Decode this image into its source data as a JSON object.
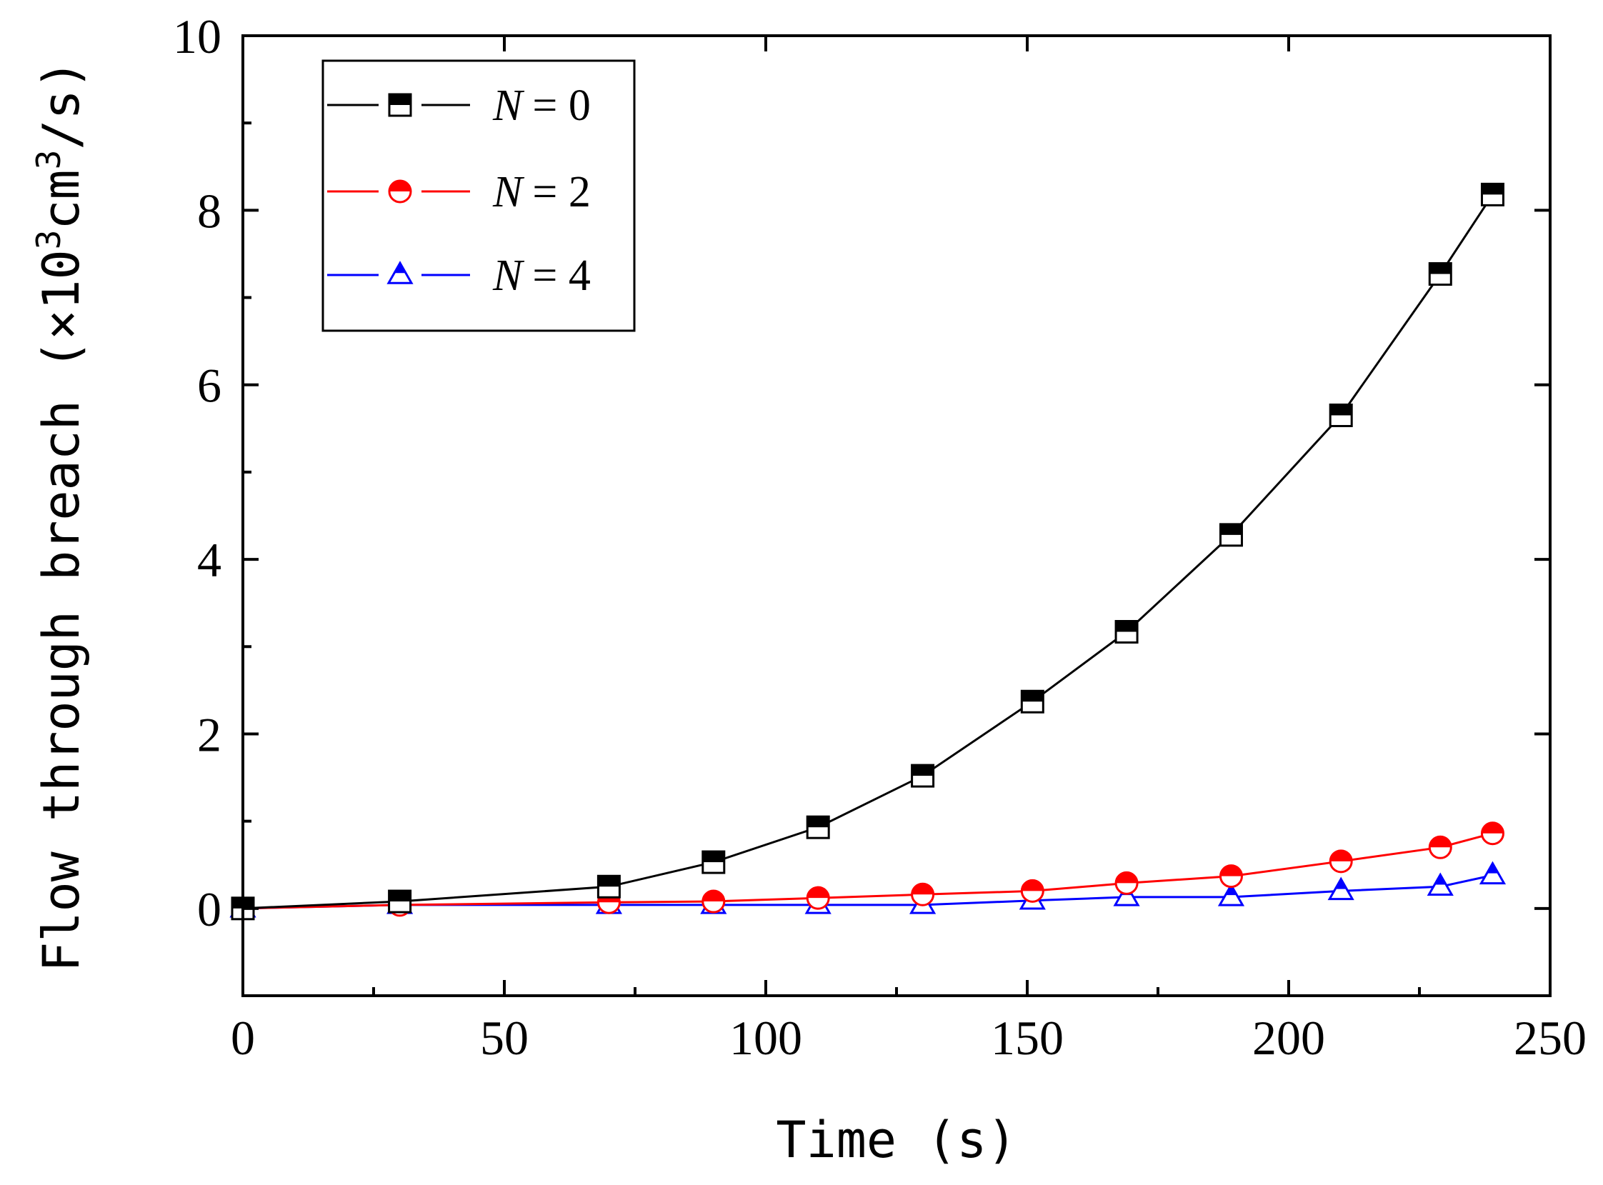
{
  "chart_data": {
    "type": "line",
    "title": "",
    "xlabel": "Time (s)",
    "ylabel_parts": {
      "main": "Flow through breach (×10",
      "exp1": "3",
      "mid": "cm",
      "exp2": "3",
      "end": "/s)"
    },
    "xlim": [
      0,
      250
    ],
    "ylim": [
      -1,
      10
    ],
    "xticks": [
      0,
      50,
      100,
      150,
      200,
      250
    ],
    "xtick_labels": [
      "0",
      "50",
      "100",
      "150",
      "200",
      "250"
    ],
    "yticks": [
      0,
      2,
      4,
      6,
      8,
      10
    ],
    "ytick_labels": [
      "0",
      "2",
      "4",
      "6",
      "8",
      "10"
    ],
    "legend_position": "top-left",
    "series": [
      {
        "name": "N = 0",
        "label_var": "N",
        "label_val": "= 0",
        "color": "#000000",
        "marker": "square",
        "x": [
          0,
          30,
          70,
          90,
          110,
          130,
          151,
          169,
          189,
          210,
          229,
          239
        ],
        "y": [
          0,
          0.08,
          0.25,
          0.53,
          0.93,
          1.52,
          2.37,
          3.17,
          4.28,
          5.65,
          7.27,
          8.18
        ]
      },
      {
        "name": "N = 2",
        "label_var": "N",
        "label_val": "= 2",
        "color": "#ff0000",
        "marker": "circle",
        "x": [
          0,
          30,
          70,
          90,
          110,
          130,
          151,
          169,
          189,
          210,
          229,
          239
        ],
        "y": [
          0,
          0.04,
          0.07,
          0.08,
          0.12,
          0.16,
          0.2,
          0.29,
          0.37,
          0.54,
          0.7,
          0.86
        ]
      },
      {
        "name": "N = 4",
        "label_var": "N",
        "label_val": "= 4",
        "color": "#0000ff",
        "marker": "triangle",
        "x": [
          0,
          30,
          70,
          90,
          110,
          130,
          151,
          169,
          189,
          210,
          229,
          239
        ],
        "y": [
          0,
          0.04,
          0.04,
          0.04,
          0.04,
          0.04,
          0.09,
          0.13,
          0.13,
          0.2,
          0.25,
          0.38
        ]
      }
    ]
  }
}
